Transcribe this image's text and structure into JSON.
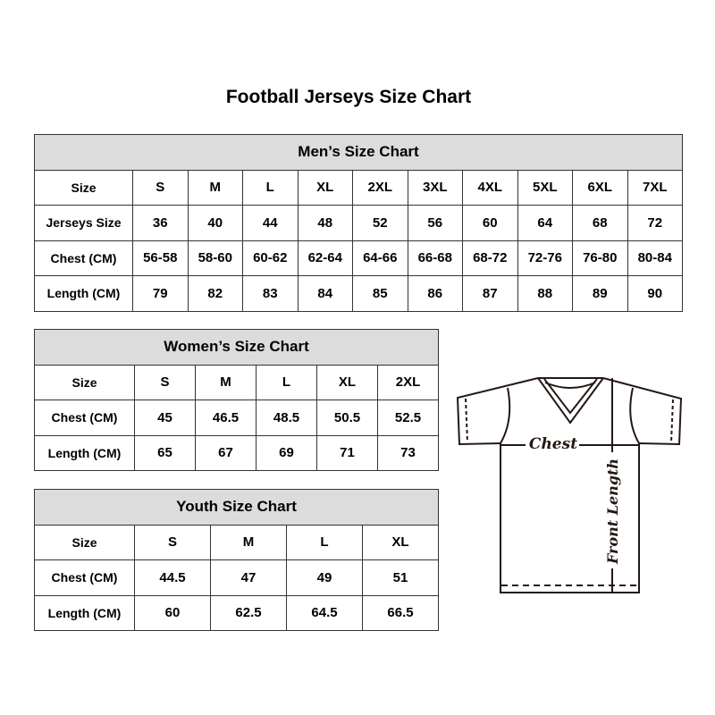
{
  "title": "Football Jerseys Size Chart",
  "men": {
    "caption": "Men’s Size Chart",
    "rows": [
      {
        "label": "Size",
        "values": [
          "S",
          "M",
          "L",
          "XL",
          "2XL",
          "3XL",
          "4XL",
          "5XL",
          "6XL",
          "7XL"
        ]
      },
      {
        "label": "Jerseys Size",
        "values": [
          "36",
          "40",
          "44",
          "48",
          "52",
          "56",
          "60",
          "64",
          "68",
          "72"
        ]
      },
      {
        "label": "Chest (CM)",
        "values": [
          "56-58",
          "58-60",
          "60-62",
          "62-64",
          "64-66",
          "66-68",
          "68-72",
          "72-76",
          "76-80",
          "80-84"
        ]
      },
      {
        "label": "Length (CM)",
        "values": [
          "79",
          "82",
          "83",
          "84",
          "85",
          "86",
          "87",
          "88",
          "89",
          "90"
        ]
      }
    ]
  },
  "women": {
    "caption": "Women’s Size Chart",
    "rows": [
      {
        "label": "Size",
        "values": [
          "S",
          "M",
          "L",
          "XL",
          "2XL"
        ]
      },
      {
        "label": "Chest (CM)",
        "values": [
          "45",
          "46.5",
          "48.5",
          "50.5",
          "52.5"
        ]
      },
      {
        "label": "Length (CM)",
        "values": [
          "65",
          "67",
          "69",
          "71",
          "73"
        ]
      }
    ]
  },
  "youth": {
    "caption": "Youth Size Chart",
    "rows": [
      {
        "label": "Size",
        "values": [
          "S",
          "M",
          "L",
          "XL"
        ]
      },
      {
        "label": "Chest (CM)",
        "values": [
          "44.5",
          "47",
          "49",
          "51"
        ]
      },
      {
        "label": "Length (CM)",
        "values": [
          "60",
          "62.5",
          "64.5",
          "66.5"
        ]
      }
    ]
  },
  "diagram": {
    "chest_label": "Chest",
    "length_label": "Front Length"
  }
}
